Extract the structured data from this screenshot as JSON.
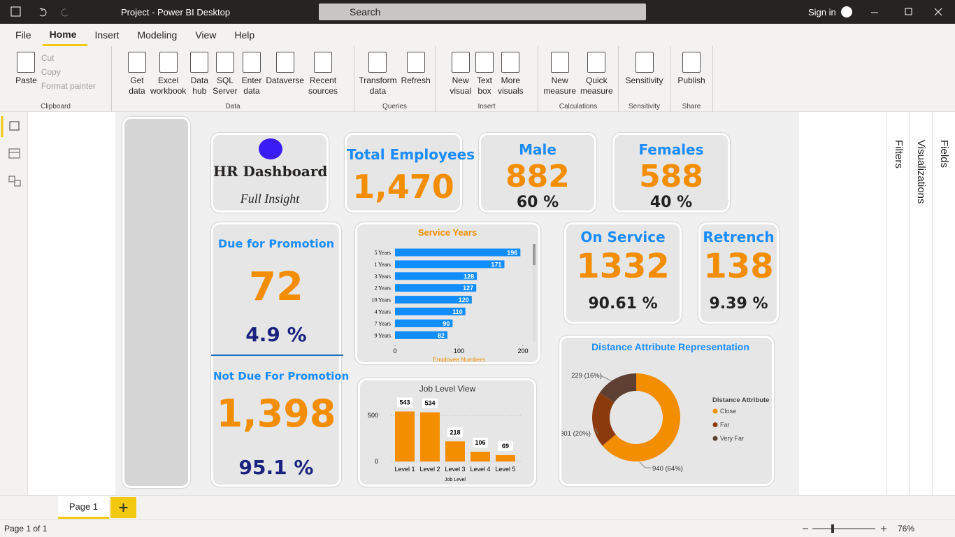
{
  "window": {
    "title": "Project - Power BI Desktop",
    "search": "Search",
    "sign_in": "Sign in"
  },
  "menu": [
    "File",
    "Home",
    "Insert",
    "Modeling",
    "View",
    "Help"
  ],
  "ribbon": {
    "groups": [
      {
        "label": "Clipboard",
        "buttons": [
          "Paste",
          "Cut",
          "Copy",
          "Format painter"
        ]
      },
      {
        "label": "Data",
        "buttons": [
          "Get data",
          "Excel workbook",
          "Data hub",
          "SQL Server",
          "Enter data",
          "Dataverse",
          "Recent sources"
        ]
      },
      {
        "label": "Queries",
        "buttons": [
          "Transform data",
          "Refresh"
        ]
      },
      {
        "label": "Insert",
        "buttons": [
          "New visual",
          "Text box",
          "More visuals"
        ]
      },
      {
        "label": "Calculations",
        "buttons": [
          "New measure",
          "Quick measure"
        ]
      },
      {
        "label": "Sensitivity",
        "buttons": [
          "Sensitivity"
        ]
      },
      {
        "label": "Share",
        "buttons": [
          "Publish"
        ]
      }
    ]
  },
  "panes": [
    "Filters",
    "Visualizations",
    "Fields"
  ],
  "dashboard": {
    "title_card": {
      "title": "HR Dashboard",
      "subtitle": "Full Insight"
    },
    "total": {
      "label": "Total Employees",
      "value": "1,470"
    },
    "male": {
      "label": "Male",
      "value": "882",
      "percent": "60 %"
    },
    "females": {
      "label": "Females",
      "value": "588",
      "percent": "40 %"
    },
    "promotion": {
      "due_label": "Due for Promotion",
      "due_value": "72",
      "due_percent": "4.9 %",
      "not_due_label": "Not Due For Promotion",
      "not_due_value": "1,398",
      "not_due_percent": "95.1 %"
    },
    "on_service": {
      "label": "On Service",
      "value": "1332",
      "percent": "90.61 %"
    },
    "retrench": {
      "label": "Retrench",
      "value": "138",
      "percent": "9.39 %"
    }
  },
  "chart_data": [
    {
      "type": "barh",
      "title": "Service Years",
      "categories": [
        "5 Years",
        "1 Years",
        "3 Years",
        "2 Years",
        "10 Years",
        "4 Years",
        "7 Years",
        "9 Years"
      ],
      "values": [
        196,
        171,
        128,
        127,
        120,
        110,
        90,
        82
      ],
      "color": "#118dff",
      "xlim": [
        0,
        200
      ],
      "xticks": [
        0,
        100,
        200
      ],
      "x_label": "Employee Numbers"
    },
    {
      "type": "bar",
      "title": "Job Level View",
      "categories": [
        "Level 1",
        "Level 2",
        "Level 3",
        "Level 4",
        "Level 5"
      ],
      "values": [
        543,
        534,
        218,
        106,
        69
      ],
      "color": "#f28e00",
      "ylim": [
        0,
        600
      ],
      "yticks": [
        0,
        500
      ],
      "x_label": "Job Level"
    },
    {
      "type": "donut",
      "title": "Distance Attribute Representation",
      "categories": [
        "Close",
        "Far",
        "Very Far"
      ],
      "values": [
        940,
        301,
        229
      ],
      "value_labels": [
        "940 (64%)",
        "301 (20%)",
        "229 (16%)"
      ],
      "colors": [
        "#f28e00",
        "#8b3a0e",
        "#5e4033"
      ],
      "legend_title": "Distance Attribute"
    }
  ],
  "pages": {
    "tab": "Page 1",
    "status": "Page 1 of 1",
    "zoom": "76%"
  }
}
